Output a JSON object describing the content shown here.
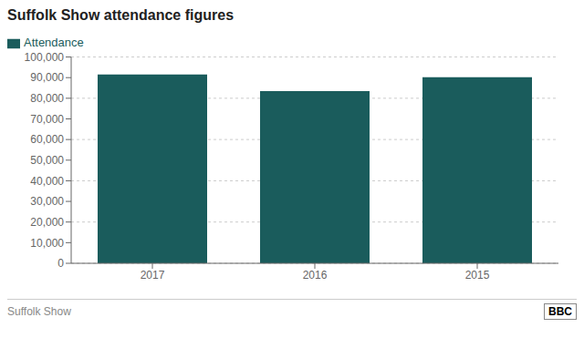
{
  "chart_data": {
    "type": "bar",
    "title": "Suffolk Show attendance figures",
    "categories": [
      "2017",
      "2016",
      "2015"
    ],
    "series": [
      {
        "name": "Attendance",
        "color": "#1a5c5c",
        "values": [
          91500,
          83500,
          90200
        ]
      }
    ],
    "ylim": [
      0,
      100000
    ],
    "yticks": [
      0,
      {
        "value": 10000,
        "label": "10,000"
      },
      {
        "value": 20000,
        "label": "20,000"
      },
      {
        "value": 30000,
        "label": "30,000"
      },
      {
        "value": 40000,
        "label": "40,000"
      },
      {
        "value": 50000,
        "label": "50,000"
      },
      {
        "value": 60000,
        "label": "60,000"
      },
      {
        "value": 70000,
        "label": "70,000"
      },
      {
        "value": 80000,
        "label": "80,000"
      },
      {
        "value": 90000,
        "label": "90,000"
      },
      {
        "value": 100000,
        "label": "100,000"
      }
    ],
    "grid": true,
    "legend": "upper left",
    "annotations": [
      "Suffolk Show",
      "BBC"
    ]
  }
}
